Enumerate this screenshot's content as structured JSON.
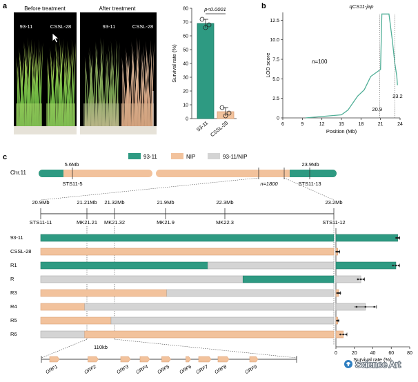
{
  "panels": {
    "a": "a",
    "b": "b",
    "c": "c"
  },
  "photos": {
    "before_title": "Before treatment",
    "after_title": "After treatment",
    "before_labels": [
      "93-11",
      "CSSL-28"
    ],
    "after_labels": [
      "93-11",
      "CSSL-28"
    ]
  },
  "colors": {
    "teal": "#2e9a82",
    "teal_dark": "#1f7a66",
    "peach": "#f2c29c",
    "peach_dark": "#d9a077",
    "grey": "#d4d4d4",
    "grey_dark": "#a8a8a8",
    "line": "#4fae96",
    "axis": "#333333"
  },
  "chart_a": {
    "type": "bar",
    "categories": [
      "93-11",
      "CSSL-28"
    ],
    "values": [
      69,
      5
    ],
    "errors": [
      3,
      3
    ],
    "points": [
      [
        72,
        66,
        68
      ],
      [
        8,
        2,
        4
      ]
    ],
    "colors": [
      "teal",
      "peach"
    ],
    "ylabel": "Survival rate (%)",
    "ylim": [
      0,
      80
    ],
    "yticks": [
      0,
      10,
      20,
      30,
      40,
      50,
      60,
      70,
      80
    ],
    "pvalue": "p<0.0001"
  },
  "chart_b": {
    "type": "line",
    "title": "qCS11-jap",
    "xlabel": "Position (Mb)",
    "ylabel": "LOD score",
    "xlim": [
      6,
      24
    ],
    "ylim": [
      0,
      13.5
    ],
    "xticks": [
      6,
      9,
      12,
      15,
      18,
      21,
      24
    ],
    "yticks": [
      0,
      2.5,
      5.0,
      7.5,
      10.0,
      12.5
    ],
    "annotation": "n=100",
    "points": [
      [
        9.5,
        0
      ],
      [
        15,
        0.4
      ],
      [
        16,
        1.0
      ],
      [
        17.5,
        2.8
      ],
      [
        18.5,
        3.6
      ],
      [
        19.5,
        5.3
      ],
      [
        20.5,
        5.9
      ],
      [
        21,
        6.2
      ],
      [
        21.2,
        13.3
      ],
      [
        22.3,
        13.3
      ],
      [
        22.8,
        10.0
      ],
      [
        23.2,
        7.0
      ],
      [
        23.5,
        5.3
      ],
      [
        23.6,
        4.2
      ]
    ],
    "markers": [
      {
        "x": 20.9,
        "label": "20.9"
      },
      {
        "x": 23.2,
        "label": "23.2"
      }
    ]
  },
  "legend_c": [
    {
      "label": "93-11",
      "color": "teal"
    },
    {
      "label": "NIP",
      "color": "peach"
    },
    {
      "label": "93-11/NIP",
      "color": "grey"
    }
  ],
  "chromosome": {
    "name": "Chr.11",
    "markers": [
      {
        "pos": "5.6Mb",
        "marker": "STS11-5"
      },
      {
        "pos": "23.9Mb",
        "marker": "STS11-13"
      }
    ],
    "n_label": "n=1800"
  },
  "fine_map": {
    "positions": [
      "20.9Mb",
      "21.21Mb",
      "21.32Mb",
      "21.9Mb",
      "22.3Mb",
      "23.2Mb"
    ],
    "markers": [
      "STS11-11",
      "MK21.21",
      "MK21.32",
      "MK21.9",
      "MK22.3",
      "STS11-12"
    ]
  },
  "lines": [
    {
      "name": "93-11",
      "segments": [
        {
          "from": 0,
          "to": 1,
          "color": "teal"
        }
      ],
      "rate": 67,
      "err": 2
    },
    {
      "name": "CSSL-28",
      "segments": [
        {
          "from": 0,
          "to": 1,
          "color": "peach"
        }
      ],
      "rate": 2,
      "err": 2
    },
    {
      "name": "R1",
      "segments": [
        {
          "from": 0,
          "to": 0.57,
          "color": "teal"
        },
        {
          "from": 0.57,
          "to": 1,
          "color": "grey"
        }
      ],
      "rate": 65,
      "err": 4
    },
    {
      "name": "R",
      "segments": [
        {
          "from": 0,
          "to": 0.69,
          "color": "grey"
        },
        {
          "from": 0.69,
          "to": 1,
          "color": "teal"
        }
      ],
      "rate": 27,
      "err": 4
    },
    {
      "name": "R3",
      "segments": [
        {
          "from": 0,
          "to": 0.43,
          "color": "peach"
        },
        {
          "from": 0.43,
          "to": 1,
          "color": "grey"
        }
      ],
      "rate": 3,
      "err": 2
    },
    {
      "name": "R4",
      "segments": [
        {
          "from": 0,
          "to": 0.15,
          "color": "peach"
        },
        {
          "from": 0.15,
          "to": 1,
          "color": "grey"
        }
      ],
      "rate": 32,
      "err": 12
    },
    {
      "name": "R5",
      "segments": [
        {
          "from": 0,
          "to": 0.24,
          "color": "peach"
        },
        {
          "from": 0.24,
          "to": 1,
          "color": "grey"
        }
      ],
      "rate": 2,
      "err": 1
    },
    {
      "name": "R6",
      "segments": [
        {
          "from": 0,
          "to": 0.15,
          "color": "grey"
        },
        {
          "from": 0.15,
          "to": 1,
          "color": "peach"
        }
      ],
      "rate": 8,
      "err": 4
    }
  ],
  "survival_chart": {
    "type": "bar",
    "xlabel": "Survival rate (%)",
    "xlim": [
      0,
      80
    ],
    "xticks": [
      0,
      20,
      40,
      60,
      80
    ]
  },
  "orfs": {
    "interval_label": "110kb",
    "labels": [
      "ORF1",
      "ORF2",
      "ORF3",
      "ORF4",
      "ORF5",
      "ORF6",
      "ORF7",
      "ORF8",
      "ORF9"
    ]
  },
  "watermark": "Science Art"
}
